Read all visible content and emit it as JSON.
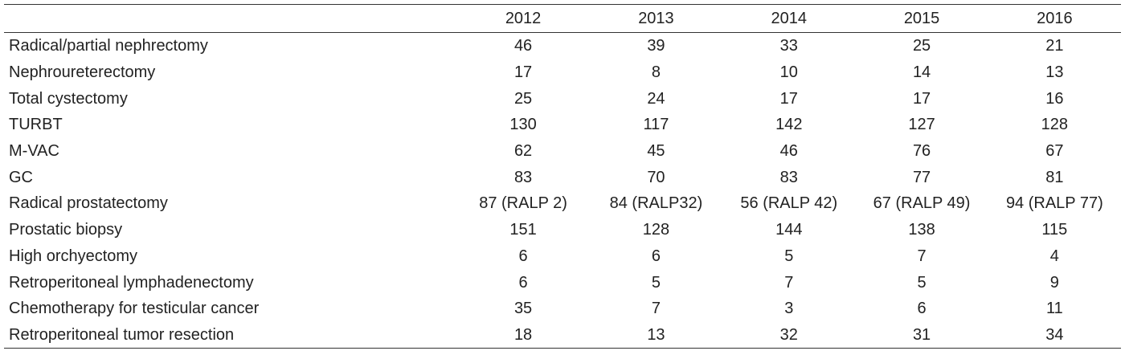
{
  "table": {
    "header": [
      "",
      "2012",
      "2013",
      "2014",
      "2015",
      "2016"
    ],
    "rows": [
      [
        "Radical/partial nephrectomy",
        46,
        39,
        33,
        25,
        21
      ],
      [
        "Nephroureterectomy",
        17,
        8,
        10,
        14,
        13
      ],
      [
        "Total cystectomy",
        25,
        24,
        17,
        17,
        16
      ],
      [
        "TURBT",
        130,
        117,
        142,
        127,
        128
      ],
      [
        "M-VAC",
        62,
        45,
        46,
        76,
        67
      ],
      [
        "GC",
        83,
        70,
        83,
        77,
        81
      ],
      [
        "Radical prostatectomy",
        "87 (RALP 2)",
        "84 (RALP32)",
        "56 (RALP 42)",
        "67 (RALP 49)",
        "94 (RALP 77)"
      ],
      [
        "Prostatic biopsy",
        151,
        128,
        144,
        138,
        115
      ],
      [
        "High orchyectomy",
        6,
        6,
        5,
        7,
        4
      ],
      [
        "Retroperitoneal lymphadenectomy",
        6,
        5,
        7,
        5,
        9
      ],
      [
        "Chemotherapy for testicular cancer",
        35,
        7,
        3,
        6,
        11
      ],
      [
        "Retroperitoneal tumor resection",
        18,
        13,
        32,
        31,
        34
      ]
    ]
  }
}
